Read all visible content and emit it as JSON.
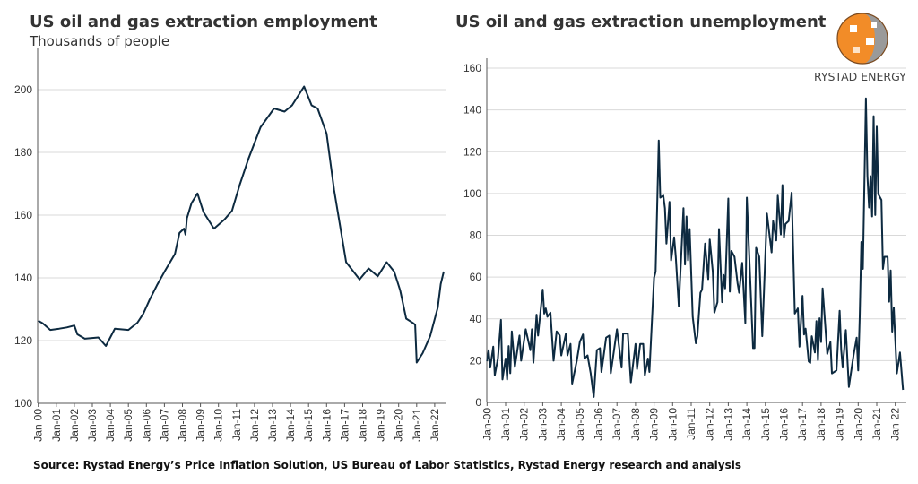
{
  "source": "Source: Rystad Energy’s Price Inflation  Solution,  US Bureau of Labor Statistics,  Rystad Energy research and analysis",
  "logo": {
    "text": "RYSTAD ENERGY",
    "colors": [
      "#f28c28",
      "#8c8c8c"
    ]
  },
  "line_color": "#0d2a40",
  "grid_color": "#d9d9d9",
  "chart_data": [
    {
      "type": "line",
      "title": "US oil and gas extraction employment",
      "subtitle": "Thousands of people",
      "xlabel": "",
      "ylabel": "",
      "ylim": [
        100,
        210
      ],
      "yticks": [
        "100",
        "120",
        "140",
        "160",
        "180",
        "200"
      ],
      "xticks": [
        "Jan-00",
        "Jan-01",
        "Jan-02",
        "Jan-03",
        "Jan-04",
        "Jan-05",
        "Jan-06",
        "Jan-07",
        "Jan-08",
        "Jan-09",
        "Jan-10",
        "Jan-11",
        "Jan-12",
        "Jan-13",
        "Jan-14",
        "Jan-15",
        "Jan-16",
        "Jan-17",
        "Jan-18",
        "Jan-19",
        "Jan-20",
        "Jan-21",
        "Jan-22"
      ],
      "grid": true,
      "legend": "none",
      "series": [
        {
          "points": [
            [
              "2000-01",
              126.3
            ],
            [
              "2000-04",
              125.5
            ],
            [
              "2000-09",
              123.4
            ],
            [
              "2001-03",
              123.8
            ],
            [
              "2001-08",
              124.2
            ],
            [
              "2002-01",
              124.8
            ],
            [
              "2002-03",
              122
            ],
            [
              "2002-08",
              120.6
            ],
            [
              "2003-05",
              121
            ],
            [
              "2003-10",
              118.3
            ],
            [
              "2004-04",
              123.8
            ],
            [
              "2005-01",
              123.4
            ],
            [
              "2005-07",
              125.7
            ],
            [
              "2005-11",
              128.6
            ],
            [
              "2006-03",
              132.9
            ],
            [
              "2006-08",
              137.6
            ],
            [
              "2007-01",
              141.9
            ],
            [
              "2007-08",
              147.6
            ],
            [
              "2007-11",
              154.3
            ],
            [
              "2008-02",
              155.7
            ],
            [
              "2008-03",
              153.8
            ],
            [
              "2008-04",
              159
            ],
            [
              "2008-07",
              163.8
            ],
            [
              "2008-11",
              166.9
            ],
            [
              "2009-03",
              161
            ],
            [
              "2009-10",
              155.7
            ],
            [
              "2010-05",
              158.6
            ],
            [
              "2010-10",
              161.4
            ],
            [
              "2011-03",
              169.5
            ],
            [
              "2011-09",
              178
            ],
            [
              "2012-05",
              188
            ],
            [
              "2013-02",
              194
            ],
            [
              "2013-09",
              193
            ],
            [
              "2014-02",
              195
            ],
            [
              "2014-10",
              201
            ],
            [
              "2015-03",
              195
            ],
            [
              "2015-07",
              194
            ],
            [
              "2016-01",
              186
            ],
            [
              "2016-06",
              168
            ],
            [
              "2017-02",
              145
            ],
            [
              "2017-11",
              139.5
            ],
            [
              "2018-05",
              143
            ],
            [
              "2018-11",
              140.5
            ],
            [
              "2019-05",
              145
            ],
            [
              "2019-10",
              142
            ],
            [
              "2020-02",
              136
            ],
            [
              "2020-06",
              127
            ],
            [
              "2020-11",
              125.5
            ],
            [
              "2020-12",
              125
            ],
            [
              "2021-01",
              113
            ],
            [
              "2021-05",
              116
            ],
            [
              "2021-10",
              121.5
            ],
            [
              "2022-03",
              130.5
            ],
            [
              "2022-05",
              138
            ],
            [
              "2022-07",
              142
            ]
          ]
        }
      ]
    },
    {
      "type": "line",
      "title": "US oil and gas extraction unemployment",
      "xlabel": "",
      "ylabel": "",
      "ylim": [
        0,
        160
      ],
      "yticks": [
        "0",
        "20",
        "40",
        "60",
        "80",
        "100",
        "120",
        "140",
        "160"
      ],
      "xticks": [
        "Jan-00",
        "Jan-01",
        "Jan-02",
        "Jan-03",
        "Jan-04",
        "Jan-05",
        "Jan-06",
        "Jan-07",
        "Jan-08",
        "Jan-09",
        "Jan-10",
        "Jan-11",
        "Jan-12",
        "Jan-13",
        "Jan-14",
        "Jan-15",
        "Jan-16",
        "Jan-17",
        "Jan-18",
        "Jan-19",
        "Jan-20",
        "Jan-21",
        "Jan-22"
      ],
      "grid": true,
      "legend": "none",
      "series": [
        {
          "points": [
            [
              "2000-01",
              19.7
            ],
            [
              "2000-02",
              25
            ],
            [
              "2000-03",
              16.7
            ],
            [
              "2000-05",
              26.7
            ],
            [
              "2000-06",
              13
            ],
            [
              "2000-08",
              21
            ],
            [
              "2000-10",
              39.5
            ],
            [
              "2000-11",
              11
            ],
            [
              "2001-01",
              21
            ],
            [
              "2001-02",
              11
            ],
            [
              "2001-03",
              27
            ],
            [
              "2001-04",
              14
            ],
            [
              "2001-05",
              34
            ],
            [
              "2001-07",
              17
            ],
            [
              "2001-10",
              32
            ],
            [
              "2001-11",
              20
            ],
            [
              "2002-02",
              35
            ],
            [
              "2002-05",
              25
            ],
            [
              "2002-06",
              35
            ],
            [
              "2002-07",
              19
            ],
            [
              "2002-09",
              42
            ],
            [
              "2002-10",
              32
            ],
            [
              "2003-01",
              54
            ],
            [
              "2003-02",
              42.5
            ],
            [
              "2003-03",
              45
            ],
            [
              "2003-04",
              41
            ],
            [
              "2003-06",
              43
            ],
            [
              "2003-08",
              20
            ],
            [
              "2003-10",
              34
            ],
            [
              "2003-12",
              32
            ],
            [
              "2004-01",
              22.5
            ],
            [
              "2004-04",
              33
            ],
            [
              "2004-05",
              22.5
            ],
            [
              "2004-07",
              28
            ],
            [
              "2004-08",
              9
            ],
            [
              "2004-11",
              19.7
            ],
            [
              "2005-01",
              29
            ],
            [
              "2005-03",
              32.5
            ],
            [
              "2005-04",
              21
            ],
            [
              "2005-06",
              22.5
            ],
            [
              "2005-08",
              14
            ],
            [
              "2005-10",
              2.6
            ],
            [
              "2005-12",
              25
            ],
            [
              "2006-02",
              26
            ],
            [
              "2006-03",
              14.6
            ],
            [
              "2006-06",
              31
            ],
            [
              "2006-08",
              32
            ],
            [
              "2006-09",
              14
            ],
            [
              "2007-01",
              35
            ],
            [
              "2007-04",
              16.7
            ],
            [
              "2007-05",
              33
            ],
            [
              "2007-08",
              33
            ],
            [
              "2007-10",
              9.6
            ],
            [
              "2008-01",
              28
            ],
            [
              "2008-02",
              16
            ],
            [
              "2008-04",
              28
            ],
            [
              "2008-06",
              28
            ],
            [
              "2008-07",
              13
            ],
            [
              "2008-09",
              21
            ],
            [
              "2008-10",
              14.6
            ],
            [
              "2009-01",
              59.7
            ],
            [
              "2009-02",
              62.6
            ],
            [
              "2009-04",
              125.4
            ],
            [
              "2009-05",
              98
            ],
            [
              "2009-07",
              99
            ],
            [
              "2009-08",
              93
            ],
            [
              "2009-09",
              76
            ],
            [
              "2009-11",
              96
            ],
            [
              "2009-12",
              68
            ],
            [
              "2010-02",
              79
            ],
            [
              "2010-03",
              69.7
            ],
            [
              "2010-05",
              46
            ],
            [
              "2010-08",
              93
            ],
            [
              "2010-09",
              66
            ],
            [
              "2010-10",
              89
            ],
            [
              "2010-11",
              68
            ],
            [
              "2010-12",
              83
            ],
            [
              "2011-02",
              41
            ],
            [
              "2011-04",
              28.3
            ],
            [
              "2011-05",
              31.7
            ],
            [
              "2011-07",
              52.5
            ],
            [
              "2011-08",
              54
            ],
            [
              "2011-10",
              76
            ],
            [
              "2011-12",
              59
            ],
            [
              "2012-01",
              78
            ],
            [
              "2012-03",
              62.6
            ],
            [
              "2012-04",
              43
            ],
            [
              "2012-06",
              48
            ],
            [
              "2012-07",
              83
            ],
            [
              "2012-09",
              48
            ],
            [
              "2012-10",
              61
            ],
            [
              "2012-11",
              54.6
            ],
            [
              "2013-01",
              97.6
            ],
            [
              "2013-02",
              53
            ],
            [
              "2013-03",
              72.5
            ],
            [
              "2013-05",
              69.7
            ],
            [
              "2013-07",
              56.8
            ],
            [
              "2013-08",
              52.5
            ],
            [
              "2013-10",
              66.8
            ],
            [
              "2013-12",
              38
            ],
            [
              "2014-01",
              98
            ],
            [
              "2014-05",
              26
            ],
            [
              "2014-06",
              26
            ],
            [
              "2014-07",
              74
            ],
            [
              "2014-09",
              69.7
            ],
            [
              "2014-11",
              31.7
            ],
            [
              "2015-02",
              90.4
            ],
            [
              "2015-05",
              71.8
            ],
            [
              "2015-06",
              86.8
            ],
            [
              "2015-08",
              77.5
            ],
            [
              "2015-09",
              99
            ],
            [
              "2015-11",
              80.4
            ],
            [
              "2015-12",
              104
            ],
            [
              "2016-01",
              79
            ],
            [
              "2016-02",
              85.4
            ],
            [
              "2016-04",
              86.8
            ],
            [
              "2016-06",
              100.4
            ],
            [
              "2016-08",
              42.5
            ],
            [
              "2016-10",
              45
            ],
            [
              "2016-11",
              26.7
            ],
            [
              "2017-01",
              51
            ],
            [
              "2017-02",
              32.5
            ],
            [
              "2017-03",
              35.3
            ],
            [
              "2017-05",
              19.6
            ],
            [
              "2017-06",
              18.9
            ],
            [
              "2017-07",
              31.7
            ],
            [
              "2017-09",
              23.9
            ],
            [
              "2017-10",
              38.9
            ],
            [
              "2017-11",
              20.3
            ],
            [
              "2017-12",
              40.3
            ],
            [
              "2018-01",
              28.9
            ],
            [
              "2018-02",
              54.6
            ],
            [
              "2018-05",
              23.2
            ],
            [
              "2018-07",
              28.9
            ],
            [
              "2018-08",
              13.9
            ],
            [
              "2018-11",
              15.3
            ],
            [
              "2019-01",
              43.9
            ],
            [
              "2019-02",
              25.3
            ],
            [
              "2019-03",
              16.7
            ],
            [
              "2019-05",
              34.6
            ],
            [
              "2019-07",
              7.4
            ],
            [
              "2019-10",
              22.5
            ],
            [
              "2019-12",
              31
            ],
            [
              "2020-01",
              15.3
            ],
            [
              "2020-02",
              41
            ],
            [
              "2020-03",
              76.8
            ],
            [
              "2020-04",
              63.9
            ],
            [
              "2020-06",
              145.5
            ],
            [
              "2020-07",
              108.3
            ],
            [
              "2020-08",
              93.3
            ],
            [
              "2020-09",
              108.3
            ],
            [
              "2020-10",
              89
            ],
            [
              "2020-11",
              137
            ],
            [
              "2020-12",
              89.7
            ],
            [
              "2021-01",
              132
            ],
            [
              "2021-02",
              99.7
            ],
            [
              "2021-04",
              96.9
            ],
            [
              "2021-05",
              63.9
            ],
            [
              "2021-06",
              69.7
            ],
            [
              "2021-08",
              69.7
            ],
            [
              "2021-09",
              48.2
            ],
            [
              "2021-10",
              63.2
            ],
            [
              "2021-11",
              33.9
            ],
            [
              "2021-12",
              45.4
            ],
            [
              "2022-02",
              13.9
            ],
            [
              "2022-04",
              23.9
            ],
            [
              "2022-06",
              6
            ]
          ]
        }
      ]
    }
  ]
}
